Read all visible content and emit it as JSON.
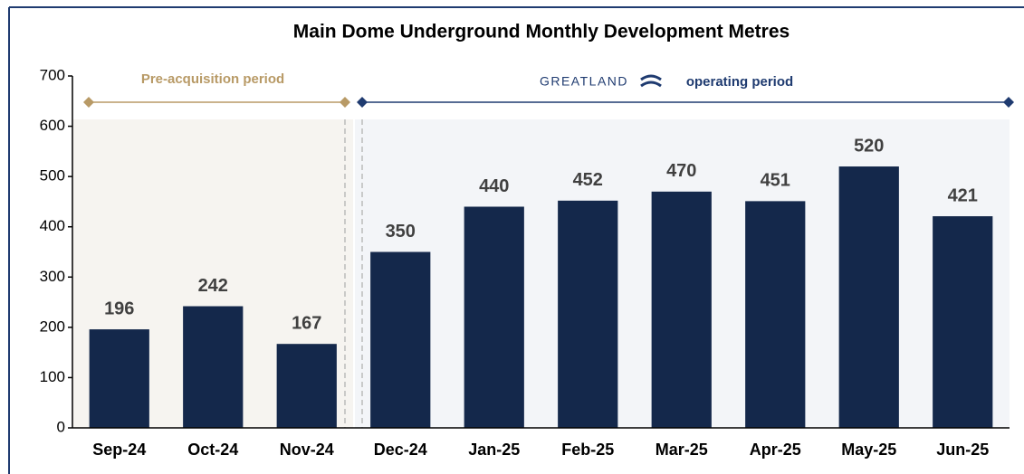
{
  "chart_data": {
    "type": "bar",
    "title": "Main Dome Underground Monthly Development Metres",
    "annotations": [
      "Pre-acquisition period",
      "GREATLAND",
      "operating period"
    ],
    "categories": [
      "Sep-24",
      "Oct-24",
      "Nov-24",
      "Dec-24",
      "Jan-25",
      "Feb-25",
      "Mar-25",
      "Apr-25",
      "May-25",
      "Jun-25"
    ],
    "values": [
      196,
      242,
      167,
      350,
      440,
      452,
      470,
      451,
      520,
      421
    ],
    "color": "#14284b",
    "ylim": [
      0,
      700
    ],
    "yticks": [
      0,
      100,
      200,
      300,
      400,
      500,
      600,
      700
    ],
    "grid": false
  }
}
